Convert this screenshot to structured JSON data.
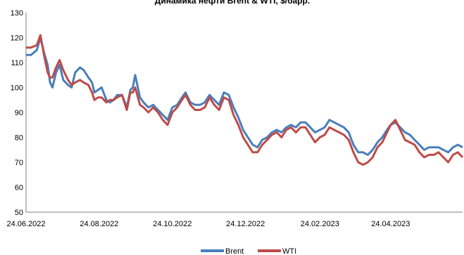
{
  "chart_data": {
    "type": "line",
    "title": "Динамика нефти Brent & WTI, $/барр.",
    "xlabel": "",
    "ylabel": "",
    "ylim": [
      50,
      130
    ],
    "yticks": [
      "50",
      "60",
      "70",
      "80",
      "90",
      "100",
      "110",
      "120",
      "130"
    ],
    "xticks": [
      "24.06.2022",
      "24.08.2022",
      "24.10.2022",
      "24.12.2022",
      "24.02.2023",
      "24.04.2023"
    ],
    "xlim": [
      "24.06.2022",
      "23.06.2023"
    ],
    "grid": false,
    "legend": "bottom",
    "series": [
      {
        "name": "Brent",
        "color": "#4a7ebb",
        "points": [
          [
            "24.06.2022",
            113
          ],
          [
            "28.06.2022",
            113
          ],
          [
            "03.07.2022",
            115
          ],
          [
            "06.07.2022",
            120
          ],
          [
            "09.07.2022",
            114
          ],
          [
            "12.07.2022",
            109
          ],
          [
            "14.07.2022",
            102
          ],
          [
            "16.07.2022",
            100
          ],
          [
            "19.07.2022",
            106
          ],
          [
            "22.07.2022",
            109
          ],
          [
            "25.07.2022",
            103
          ],
          [
            "29.07.2022",
            101
          ],
          [
            "01.08.2022",
            100
          ],
          [
            "04.08.2022",
            106
          ],
          [
            "08.08.2022",
            108
          ],
          [
            "11.08.2022",
            107
          ],
          [
            "15.08.2022",
            104
          ],
          [
            "18.08.2022",
            102
          ],
          [
            "20.08.2022",
            98
          ],
          [
            "23.08.2022",
            99
          ],
          [
            "26.08.2022",
            100
          ],
          [
            "30.08.2022",
            95
          ],
          [
            "02.09.2022",
            94
          ],
          [
            "05.09.2022",
            95
          ],
          [
            "08.09.2022",
            97
          ],
          [
            "12.09.2022",
            97
          ],
          [
            "16.09.2022",
            92
          ],
          [
            "19.09.2022",
            99
          ],
          [
            "21.09.2022",
            100
          ],
          [
            "23.09.2022",
            105
          ],
          [
            "27.09.2022",
            96
          ],
          [
            "30.09.2022",
            94
          ],
          [
            "04.10.2022",
            92
          ],
          [
            "08.10.2022",
            93
          ],
          [
            "12.10.2022",
            91
          ],
          [
            "16.10.2022",
            89
          ],
          [
            "20.10.2022",
            87
          ],
          [
            "24.10.2022",
            92
          ],
          [
            "28.10.2022",
            93
          ],
          [
            "01.11.2022",
            96
          ],
          [
            "04.11.2022",
            98
          ],
          [
            "08.11.2022",
            94
          ],
          [
            "12.11.2022",
            93
          ],
          [
            "16.11.2022",
            93
          ],
          [
            "20.11.2022",
            94
          ],
          [
            "24.11.2022",
            97
          ],
          [
            "28.11.2022",
            95
          ],
          [
            "02.12.2022",
            93
          ],
          [
            "06.12.2022",
            98
          ],
          [
            "10.12.2022",
            97
          ],
          [
            "14.12.2022",
            92
          ],
          [
            "18.12.2022",
            88
          ],
          [
            "22.12.2022",
            83
          ],
          [
            "26.12.2022",
            80
          ],
          [
            "30.12.2022",
            77
          ],
          [
            "03.01.2023",
            76
          ],
          [
            "07.01.2023",
            79
          ],
          [
            "11.01.2023",
            80
          ],
          [
            "15.01.2023",
            82
          ],
          [
            "19.01.2023",
            83
          ],
          [
            "23.01.2023",
            82
          ],
          [
            "27.01.2023",
            84
          ],
          [
            "31.01.2023",
            85
          ],
          [
            "04.02.2023",
            84
          ],
          [
            "08.02.2023",
            86
          ],
          [
            "12.02.2023",
            86
          ],
          [
            "16.02.2023",
            84
          ],
          [
            "20.02.2023",
            82
          ],
          [
            "24.02.2023",
            83
          ],
          [
            "28.02.2023",
            84
          ],
          [
            "04.03.2023",
            87
          ],
          [
            "08.03.2023",
            86
          ],
          [
            "12.03.2023",
            85
          ],
          [
            "16.03.2023",
            84
          ],
          [
            "20.03.2023",
            82
          ],
          [
            "24.03.2023",
            77
          ],
          [
            "28.03.2023",
            74
          ],
          [
            "01.04.2023",
            74
          ],
          [
            "05.04.2023",
            73
          ],
          [
            "09.04.2023",
            75
          ],
          [
            "13.04.2023",
            78
          ],
          [
            "17.04.2023",
            80
          ],
          [
            "21.04.2023",
            83
          ],
          [
            "24.04.2023",
            85
          ],
          [
            "28.04.2023",
            86
          ],
          [
            "02.05.2023",
            84
          ],
          [
            "06.05.2023",
            82
          ],
          [
            "10.05.2023",
            81
          ],
          [
            "14.05.2023",
            79
          ],
          [
            "18.05.2023",
            77
          ],
          [
            "22.05.2023",
            75
          ],
          [
            "26.05.2023",
            76
          ],
          [
            "30.05.2023",
            76
          ],
          [
            "03.06.2023",
            76
          ],
          [
            "07.06.2023",
            75
          ],
          [
            "11.06.2023",
            74
          ],
          [
            "15.06.2023",
            76
          ],
          [
            "19.06.2023",
            77
          ],
          [
            "23.06.2023",
            76
          ]
        ]
      },
      {
        "name": "WTI",
        "color": "#be4b48",
        "points": [
          [
            "24.06.2022",
            116
          ],
          [
            "28.06.2022",
            116
          ],
          [
            "03.07.2022",
            117
          ],
          [
            "06.07.2022",
            121
          ],
          [
            "09.07.2022",
            113
          ],
          [
            "12.07.2022",
            106
          ],
          [
            "14.07.2022",
            104
          ],
          [
            "16.07.2022",
            104
          ],
          [
            "19.07.2022",
            108
          ],
          [
            "22.07.2022",
            111
          ],
          [
            "25.07.2022",
            107
          ],
          [
            "29.07.2022",
            103
          ],
          [
            "01.08.2022",
            101
          ],
          [
            "04.08.2022",
            102
          ],
          [
            "08.08.2022",
            103
          ],
          [
            "11.08.2022",
            102
          ],
          [
            "15.08.2022",
            101
          ],
          [
            "18.08.2022",
            98
          ],
          [
            "20.08.2022",
            95
          ],
          [
            "23.08.2022",
            96
          ],
          [
            "26.08.2022",
            96
          ],
          [
            "30.08.2022",
            94
          ],
          [
            "02.09.2022",
            95
          ],
          [
            "05.09.2022",
            95
          ],
          [
            "08.09.2022",
            96
          ],
          [
            "12.09.2022",
            97
          ],
          [
            "16.09.2022",
            91
          ],
          [
            "19.09.2022",
            98
          ],
          [
            "21.09.2022",
            98
          ],
          [
            "23.09.2022",
            100
          ],
          [
            "27.09.2022",
            93
          ],
          [
            "30.09.2022",
            92
          ],
          [
            "04.10.2022",
            90
          ],
          [
            "08.10.2022",
            92
          ],
          [
            "12.10.2022",
            90
          ],
          [
            "16.10.2022",
            87
          ],
          [
            "20.10.2022",
            85
          ],
          [
            "24.10.2022",
            90
          ],
          [
            "28.10.2022",
            92
          ],
          [
            "01.11.2022",
            95
          ],
          [
            "04.11.2022",
            97
          ],
          [
            "08.11.2022",
            93
          ],
          [
            "12.11.2022",
            91
          ],
          [
            "16.11.2022",
            91
          ],
          [
            "20.11.2022",
            92
          ],
          [
            "24.11.2022",
            96
          ],
          [
            "28.11.2022",
            93
          ],
          [
            "02.12.2022",
            91
          ],
          [
            "06.12.2022",
            96
          ],
          [
            "10.12.2022",
            95
          ],
          [
            "14.12.2022",
            89
          ],
          [
            "18.12.2022",
            85
          ],
          [
            "22.12.2022",
            80
          ],
          [
            "26.12.2022",
            77
          ],
          [
            "30.12.2022",
            74
          ],
          [
            "03.01.2023",
            74
          ],
          [
            "07.01.2023",
            77
          ],
          [
            "11.01.2023",
            79
          ],
          [
            "15.01.2023",
            81
          ],
          [
            "19.01.2023",
            82
          ],
          [
            "23.01.2023",
            80
          ],
          [
            "27.01.2023",
            83
          ],
          [
            "31.01.2023",
            84
          ],
          [
            "04.02.2023",
            82
          ],
          [
            "08.02.2023",
            84
          ],
          [
            "12.02.2023",
            84
          ],
          [
            "16.02.2023",
            81
          ],
          [
            "20.02.2023",
            78
          ],
          [
            "24.02.2023",
            80
          ],
          [
            "28.02.2023",
            81
          ],
          [
            "04.03.2023",
            84
          ],
          [
            "08.03.2023",
            83
          ],
          [
            "12.03.2023",
            82
          ],
          [
            "16.03.2023",
            81
          ],
          [
            "20.03.2023",
            79
          ],
          [
            "24.03.2023",
            74
          ],
          [
            "28.03.2023",
            70
          ],
          [
            "01.04.2023",
            69
          ],
          [
            "05.04.2023",
            70
          ],
          [
            "09.04.2023",
            72
          ],
          [
            "13.04.2023",
            76
          ],
          [
            "17.04.2023",
            78
          ],
          [
            "21.04.2023",
            82
          ],
          [
            "24.04.2023",
            85
          ],
          [
            "28.04.2023",
            87
          ],
          [
            "02.05.2023",
            83
          ],
          [
            "06.05.2023",
            79
          ],
          [
            "10.05.2023",
            78
          ],
          [
            "14.05.2023",
            77
          ],
          [
            "18.05.2023",
            74
          ],
          [
            "22.05.2023",
            72
          ],
          [
            "26.05.2023",
            73
          ],
          [
            "30.05.2023",
            73
          ],
          [
            "03.06.2023",
            74
          ],
          [
            "07.06.2023",
            72
          ],
          [
            "11.06.2023",
            70
          ],
          [
            "15.06.2023",
            73
          ],
          [
            "19.06.2023",
            74
          ],
          [
            "23.06.2023",
            72
          ]
        ]
      }
    ]
  }
}
